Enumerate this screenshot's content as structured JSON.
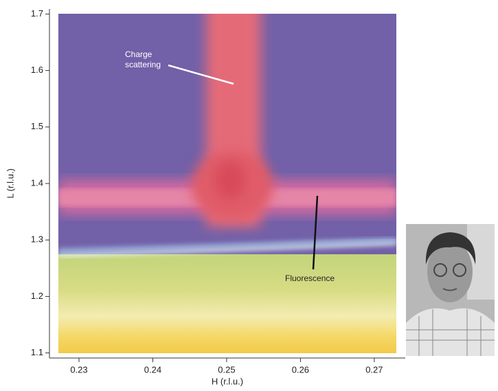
{
  "chart_data": {
    "type": "heatmap",
    "xlabel": "H (r.l.u.)",
    "ylabel": "L (r.l.u.)",
    "xlim": [
      0.226,
      0.2742
    ],
    "ylim": [
      1.091,
      1.709
    ],
    "xticks": [
      0.23,
      0.24,
      0.25,
      0.26,
      0.27
    ],
    "yticks": [
      1.1,
      1.2,
      1.3,
      1.4,
      1.5,
      1.6,
      1.7
    ],
    "annotations": [
      {
        "lines": [
          "Charge",
          "scattering"
        ]
      },
      {
        "lines": [
          "Fluorescence"
        ]
      }
    ]
  }
}
